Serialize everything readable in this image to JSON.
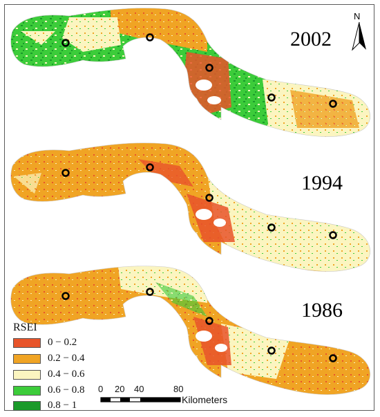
{
  "panels": [
    {
      "year": "2002"
    },
    {
      "year": "1994"
    },
    {
      "year": "1986"
    }
  ],
  "legend": {
    "title": "RSEI",
    "items": [
      {
        "label": "0 − 0.2",
        "color": "#e8542a"
      },
      {
        "label": "0.2 − 0.4",
        "color": "#f0a424"
      },
      {
        "label": "0.4 − 0.6",
        "color": "#fbf5c0"
      },
      {
        "label": "0.6 − 0.8",
        "color": "#3ccc3a"
      },
      {
        "label": "0.8 − 1",
        "color": "#1a9a2a"
      }
    ]
  },
  "north": {
    "label": "N"
  },
  "scale": {
    "ticks": [
      "0",
      "20",
      "40",
      "80"
    ],
    "unit": "Kilometers"
  }
}
